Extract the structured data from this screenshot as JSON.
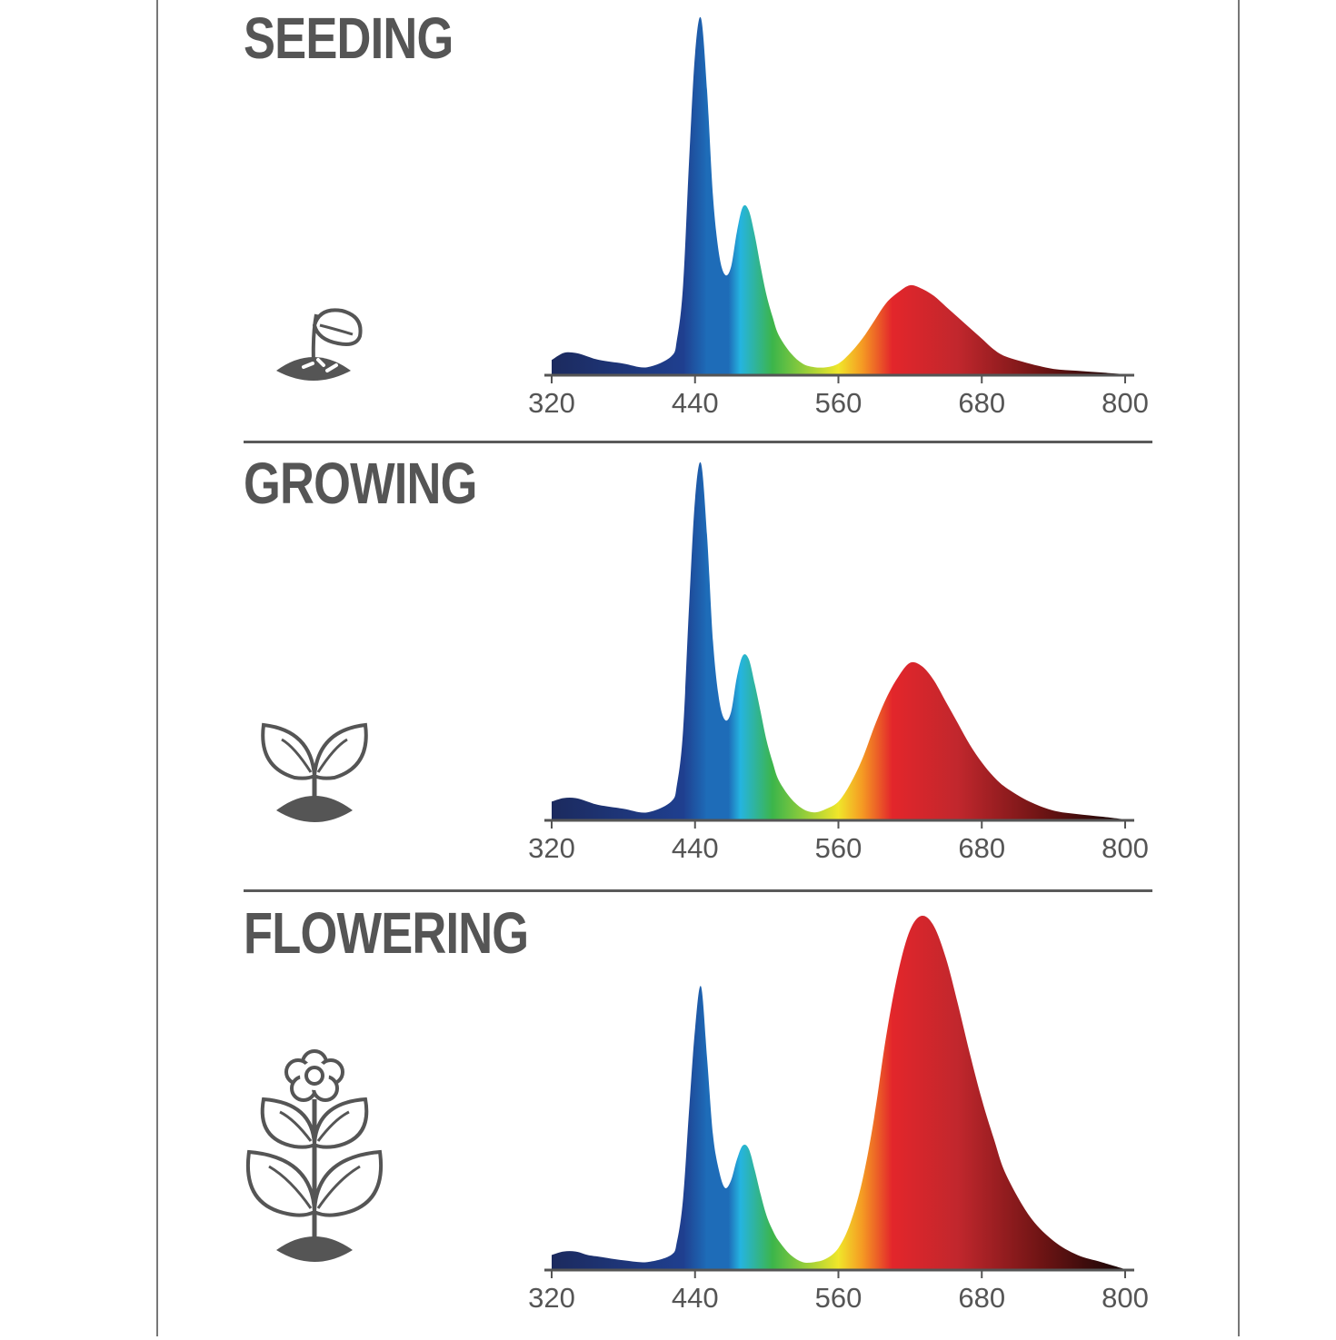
{
  "colors": {
    "frame": "#777777",
    "text": "#555555",
    "icon": "#555555",
    "spectrum": [
      "#1c2a5e",
      "#1f3f8f",
      "#1e6cb8",
      "#25b4e0",
      "#3cb54a",
      "#f0e62a",
      "#f59a23",
      "#e3262b",
      "#c1272d",
      "#6e1414",
      "#1a0606"
    ]
  },
  "chart_data": [
    {
      "type": "area",
      "title": "SEEDING",
      "icon": "seedling-sprout-icon",
      "xlabel": "",
      "ylabel": "",
      "xlim": [
        320,
        800
      ],
      "ylim": [
        0,
        1
      ],
      "xticks": [
        320,
        440,
        560,
        680,
        800
      ],
      "grid": false,
      "x": [
        320,
        330,
        340,
        350,
        360,
        380,
        400,
        420,
        425,
        430,
        435,
        440,
        445,
        450,
        455,
        460,
        465,
        470,
        475,
        480,
        485,
        490,
        495,
        500,
        505,
        510,
        520,
        530,
        540,
        550,
        560,
        570,
        580,
        590,
        600,
        610,
        620,
        630,
        640,
        650,
        660,
        670,
        680,
        690,
        700,
        720,
        740,
        760,
        780,
        800
      ],
      "values": [
        0.04,
        0.06,
        0.06,
        0.05,
        0.04,
        0.03,
        0.02,
        0.05,
        0.1,
        0.25,
        0.6,
        0.9,
        1.0,
        0.8,
        0.5,
        0.34,
        0.28,
        0.3,
        0.4,
        0.47,
        0.46,
        0.39,
        0.3,
        0.22,
        0.16,
        0.11,
        0.06,
        0.03,
        0.02,
        0.02,
        0.03,
        0.06,
        0.1,
        0.15,
        0.2,
        0.23,
        0.25,
        0.24,
        0.22,
        0.19,
        0.16,
        0.13,
        0.1,
        0.07,
        0.05,
        0.03,
        0.015,
        0.01,
        0.005,
        0.0
      ]
    },
    {
      "type": "area",
      "title": "GROWING",
      "icon": "young-plant-icon",
      "xlabel": "",
      "ylabel": "",
      "xlim": [
        320,
        800
      ],
      "ylim": [
        0,
        1
      ],
      "xticks": [
        320,
        440,
        560,
        680,
        800
      ],
      "grid": false,
      "x": [
        320,
        330,
        340,
        350,
        360,
        380,
        400,
        420,
        425,
        430,
        435,
        440,
        445,
        450,
        455,
        460,
        465,
        470,
        475,
        480,
        485,
        490,
        495,
        500,
        505,
        510,
        520,
        530,
        540,
        550,
        560,
        570,
        580,
        590,
        600,
        610,
        620,
        630,
        640,
        650,
        660,
        670,
        680,
        690,
        700,
        720,
        740,
        760,
        780,
        800
      ],
      "values": [
        0.05,
        0.06,
        0.06,
        0.05,
        0.04,
        0.03,
        0.02,
        0.05,
        0.1,
        0.25,
        0.6,
        0.9,
        1.0,
        0.8,
        0.5,
        0.34,
        0.28,
        0.3,
        0.4,
        0.46,
        0.45,
        0.38,
        0.3,
        0.22,
        0.16,
        0.11,
        0.06,
        0.03,
        0.02,
        0.03,
        0.05,
        0.1,
        0.17,
        0.26,
        0.34,
        0.4,
        0.44,
        0.43,
        0.39,
        0.33,
        0.27,
        0.21,
        0.16,
        0.12,
        0.09,
        0.05,
        0.025,
        0.015,
        0.008,
        0.0
      ]
    },
    {
      "type": "area",
      "title": "FLOWERING",
      "icon": "flowering-plant-icon",
      "xlabel": "",
      "ylabel": "",
      "xlim": [
        320,
        800
      ],
      "ylim": [
        0,
        1
      ],
      "xticks": [
        320,
        440,
        560,
        680,
        800
      ],
      "grid": false,
      "x": [
        320,
        330,
        340,
        350,
        360,
        380,
        400,
        420,
        425,
        430,
        435,
        440,
        445,
        450,
        455,
        460,
        465,
        470,
        475,
        480,
        485,
        490,
        495,
        500,
        505,
        510,
        520,
        530,
        540,
        550,
        560,
        570,
        580,
        590,
        600,
        610,
        620,
        630,
        640,
        650,
        660,
        670,
        680,
        690,
        700,
        720,
        740,
        760,
        780,
        800
      ],
      "values": [
        0.04,
        0.05,
        0.05,
        0.04,
        0.035,
        0.025,
        0.02,
        0.04,
        0.08,
        0.2,
        0.45,
        0.68,
        0.8,
        0.6,
        0.38,
        0.28,
        0.23,
        0.25,
        0.31,
        0.35,
        0.34,
        0.28,
        0.21,
        0.15,
        0.11,
        0.08,
        0.04,
        0.02,
        0.02,
        0.03,
        0.06,
        0.13,
        0.25,
        0.43,
        0.66,
        0.84,
        0.96,
        1.0,
        0.97,
        0.88,
        0.75,
        0.61,
        0.48,
        0.37,
        0.27,
        0.15,
        0.08,
        0.04,
        0.02,
        0.0
      ]
    }
  ]
}
